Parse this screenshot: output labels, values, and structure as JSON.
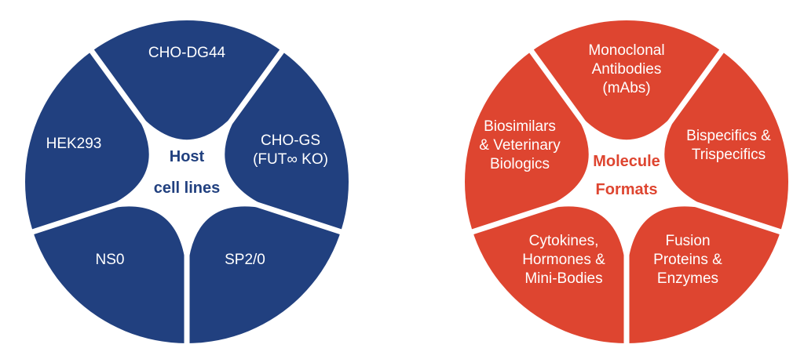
{
  "diagrams": [
    {
      "id": "host",
      "color": "#21407f",
      "center_color": "#21407f",
      "center_lines": [
        "Host",
        "cell lines"
      ],
      "segments": [
        {
          "label_lines": [
            "CHO-DG44"
          ]
        },
        {
          "label_lines": [
            "CHO-GS",
            "(FUT∞ KO)"
          ]
        },
        {
          "label_lines": [
            "SP2/0"
          ]
        },
        {
          "label_lines": [
            "NS0"
          ]
        },
        {
          "label_lines": [
            "HEK293"
          ]
        }
      ]
    },
    {
      "id": "molecule",
      "color": "#de4530",
      "center_color": "#de4530",
      "center_lines": [
        "Molecule",
        "Formats"
      ],
      "segments": [
        {
          "label_lines": [
            "Monoclonal",
            "Antibodies",
            "(mAbs)"
          ]
        },
        {
          "label_lines": [
            "Bispecifics &",
            "Trispecifics"
          ]
        },
        {
          "label_lines": [
            "Fusion",
            "Proteins &",
            "Enzymes"
          ]
        },
        {
          "label_lines": [
            "Cytokines,",
            "Hormones &",
            "Mini-Bodies"
          ]
        },
        {
          "label_lines": [
            "Biosimilars",
            "& Veterinary",
            "Biologics"
          ]
        }
      ]
    }
  ]
}
